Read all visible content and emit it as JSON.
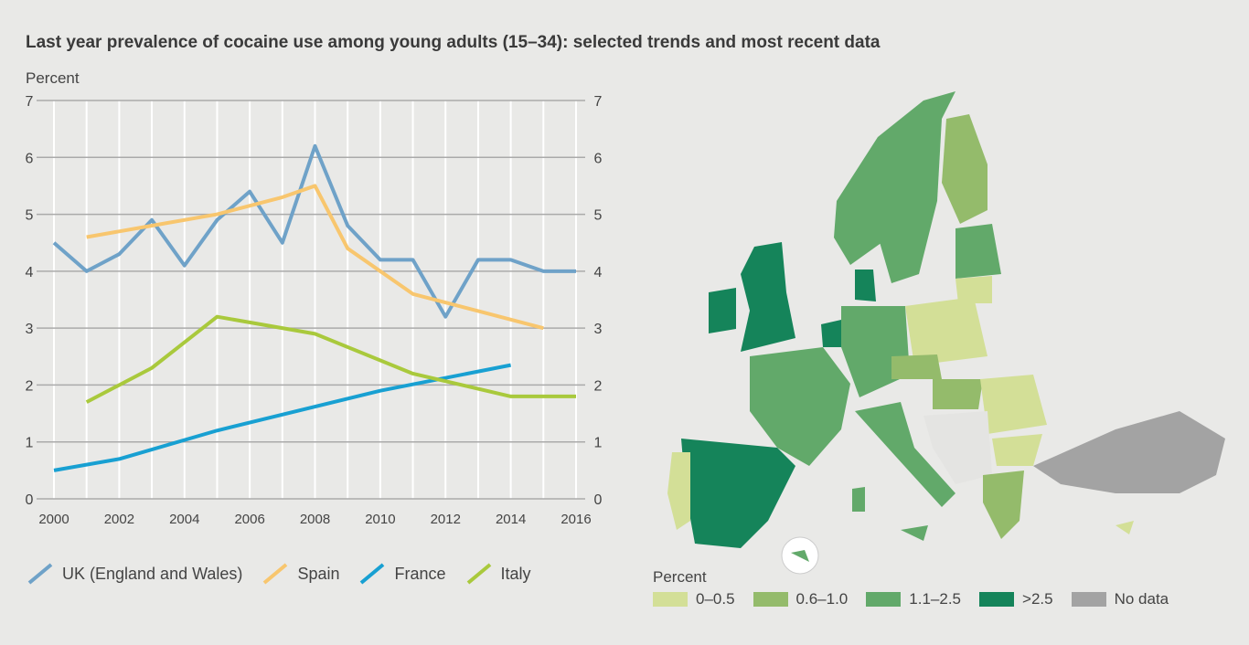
{
  "chart_data": {
    "type": "line",
    "title": "Last year prevalence of cocaine use among young adults (15–34): selected trends and most recent data",
    "ylabel": "Percent",
    "xlabel": "",
    "xlim": [
      2000,
      2016
    ],
    "ylim": [
      0,
      7
    ],
    "xticks": [
      "2000",
      "2002",
      "2004",
      "2006",
      "2008",
      "2010",
      "2012",
      "2014",
      "2016"
    ],
    "yticks": [
      "0",
      "1",
      "2",
      "3",
      "4",
      "5",
      "6",
      "7"
    ],
    "grid": true,
    "legend_position": "bottom",
    "series": [
      {
        "name": "UK (England and Wales)",
        "color": "#6fa2c8",
        "x": [
          2000,
          2001,
          2002,
          2003,
          2004,
          2005,
          2006,
          2007,
          2008,
          2009,
          2010,
          2011,
          2012,
          2013,
          2014,
          2015,
          2016
        ],
        "y": [
          4.5,
          4.0,
          4.3,
          4.9,
          4.1,
          4.9,
          5.4,
          4.5,
          6.2,
          4.8,
          4.2,
          4.2,
          3.2,
          4.2,
          4.2,
          4.0,
          4.0
        ]
      },
      {
        "name": "Spain",
        "color": "#f8c66e",
        "x": [
          2001,
          2003,
          2005,
          2007,
          2008,
          2009,
          2011,
          2013,
          2015
        ],
        "y": [
          4.6,
          4.8,
          5.0,
          5.3,
          5.5,
          4.4,
          3.6,
          3.3,
          3.0
        ]
      },
      {
        "name": "France",
        "color": "#18a0d2",
        "x": [
          2000,
          2002,
          2005,
          2010,
          2014
        ],
        "y": [
          0.5,
          0.7,
          1.2,
          1.9,
          2.35
        ]
      },
      {
        "name": "Italy",
        "color": "#a9c93c",
        "x": [
          2001,
          2003,
          2005,
          2008,
          2011,
          2014,
          2016
        ],
        "y": [
          1.7,
          2.3,
          3.2,
          2.9,
          2.2,
          1.8,
          1.8
        ]
      }
    ]
  },
  "map": {
    "legend_title": "Percent",
    "categories": [
      {
        "label": "0–0.5",
        "color": "#d3df97"
      },
      {
        "label": "0.6–1.0",
        "color": "#94bb6b"
      },
      {
        "label": "1.1–2.5",
        "color": "#62a96a"
      },
      {
        "label": ">2.5",
        "color": "#15845a"
      },
      {
        "label": "No data",
        "color": "#a3a3a3"
      }
    ]
  }
}
